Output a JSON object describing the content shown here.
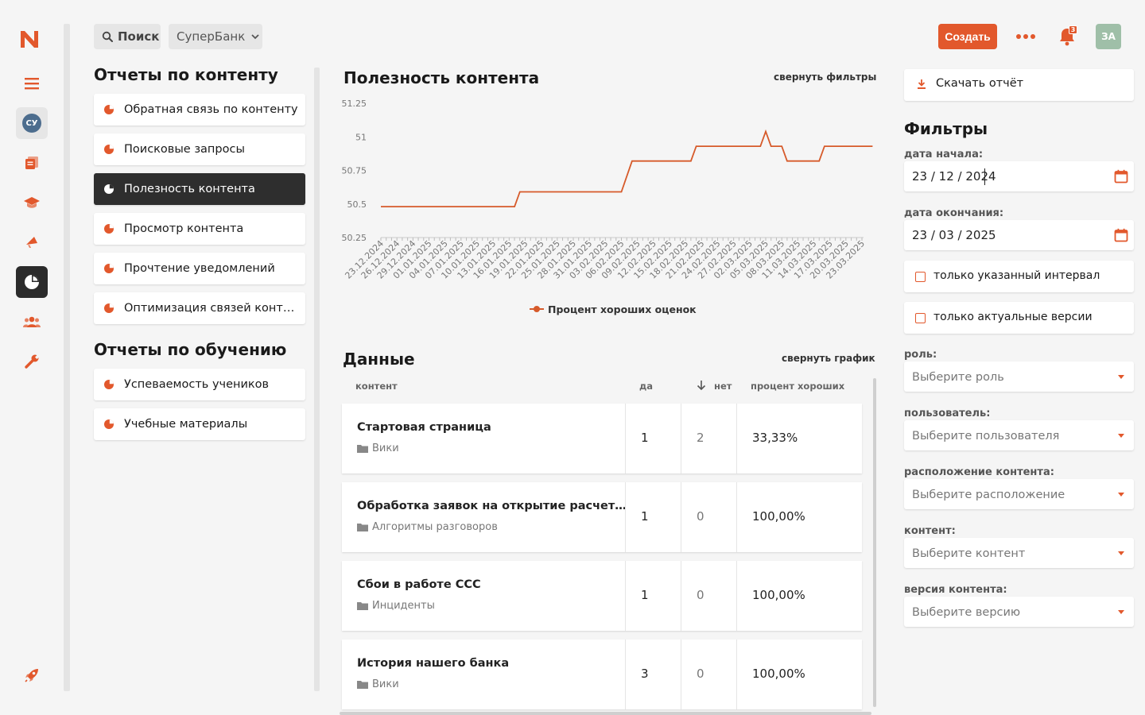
{
  "topbar": {
    "search_label": "Поиск",
    "org_select": "СуперБанк",
    "create_label": "Создать",
    "notifications_count": "3",
    "avatar_initials": "ЗА"
  },
  "rail": {
    "user_initials": "СУ",
    "icons": [
      "logo-icon",
      "menu-icon",
      "user-badge",
      "documents-icon",
      "graduation-cap-icon",
      "megaphone-icon",
      "reports-pie-icon",
      "users-icon",
      "wrench-icon",
      "rocket-icon"
    ]
  },
  "reports": {
    "content_title": "Отчеты по контенту",
    "content_items": [
      "Обратная связь по контенту",
      "Поисковые запросы",
      "Полезность контента",
      "Просмотр контента",
      "Прочтение уведомлений",
      "Оптимизация связей контекста"
    ],
    "active_index": 2,
    "learning_title": "Отчеты по обучению",
    "learning_items": [
      "Успеваемость учеников",
      "Учебные материалы"
    ]
  },
  "chart_section": {
    "title": "Полезность контента",
    "collapse_filters": "свернуть фильтры"
  },
  "chart_data": {
    "type": "line",
    "title": "Полезность контента",
    "y_ticks": [
      "51.25",
      "51",
      "50.75",
      "50.5",
      "50.25"
    ],
    "ylim": [
      50.25,
      51.25
    ],
    "x": [
      "23.12.2024",
      "26.12.2024",
      "29.12.2024",
      "01.01.2025",
      "04.01.2025",
      "07.01.2025",
      "10.01.2025",
      "13.01.2025",
      "16.01.2025",
      "19.01.2025",
      "22.01.2025",
      "25.01.2025",
      "28.01.2025",
      "31.01.2025",
      "03.02.2025",
      "06.02.2025",
      "09.02.2025",
      "12.02.2025",
      "15.02.2025",
      "18.02.2025",
      "21.02.2025",
      "24.02.2025",
      "27.02.2025",
      "02.03.2025",
      "05.03.2025",
      "08.03.2025",
      "11.03.2025",
      "14.03.2025",
      "17.03.2025",
      "20.03.2025",
      "23.03.2025"
    ],
    "series": [
      {
        "name": "Процент хороших оценок",
        "color": "#d65a2a",
        "points": [
          [
            "23.12.2024",
            50.48
          ],
          [
            "17.01.2025",
            50.48
          ],
          [
            "18.01.2025",
            50.59
          ],
          [
            "06.02.2025",
            50.59
          ],
          [
            "08.02.2025",
            50.82
          ],
          [
            "19.02.2025",
            50.82
          ],
          [
            "20.02.2025",
            50.93
          ],
          [
            "04.03.2025",
            50.93
          ],
          [
            "05.03.2025",
            51.04
          ],
          [
            "06.03.2025",
            50.93
          ],
          [
            "08.03.2025",
            50.93
          ],
          [
            "09.03.2025",
            50.82
          ],
          [
            "15.03.2025",
            50.82
          ],
          [
            "16.03.2025",
            50.93
          ],
          [
            "25.03.2025",
            50.93
          ]
        ]
      }
    ],
    "legend": "bottom-center"
  },
  "table": {
    "title": "Данные",
    "collapse_chart": "свернуть график",
    "columns": [
      "контент",
      "да",
      "нет",
      "процент хороших"
    ],
    "rows": [
      {
        "title": "Стартовая страница",
        "folder": "Вики",
        "yes": "1",
        "no": "2",
        "percent": "33,33%"
      },
      {
        "title": "Обработка заявок на открытие расчетного счета",
        "folder": "Алгоритмы разговоров",
        "yes": "1",
        "no": "0",
        "percent": "100,00%"
      },
      {
        "title": "Сбои в работе ССС",
        "folder": "Инциденты",
        "yes": "1",
        "no": "0",
        "percent": "100,00%"
      },
      {
        "title": "История нашего банка",
        "folder": "Вики",
        "yes": "3",
        "no": "0",
        "percent": "100,00%"
      }
    ]
  },
  "filters": {
    "download_label": "Скачать отчёт",
    "title": "Фильтры",
    "start_label": "дата начала:",
    "start_value": "23 / 12 / 2024",
    "end_label": "дата окончания:",
    "end_value": "23 / 03 / 2025",
    "only_interval": "только указанный интервал",
    "only_actual": "только актуальные версии",
    "role_label": "роль:",
    "role_placeholder": "Выберите роль",
    "user_label": "пользователь:",
    "user_placeholder": "Выберите пользователя",
    "location_label": "расположение контента:",
    "location_placeholder": "Выберите расположение",
    "content_label": "контент:",
    "content_placeholder": "Выберите контент",
    "version_label": "версия контента:",
    "version_placeholder": "Выберите версию"
  },
  "colors": {
    "accent": "#e2582c",
    "dark": "#2e2e2e",
    "line": "#d65a2a"
  }
}
